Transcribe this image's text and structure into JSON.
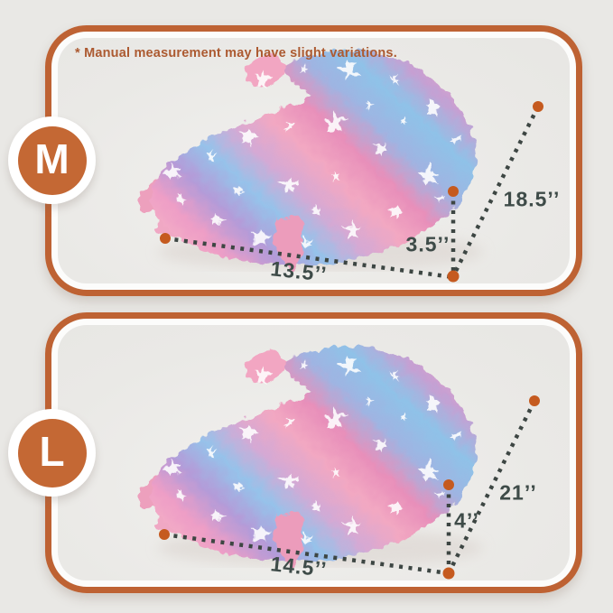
{
  "note": {
    "text": "* Manual measurement may have slight variations."
  },
  "colors": {
    "page_bg": "#e9e8e5",
    "panel_bg": "#ebeae8",
    "accent_orange": "#be6233",
    "badge_orange": "#c46834",
    "note_text": "#ac5a31",
    "measure_text": "#3e4b48",
    "dash": "#3d4643",
    "dot_orange": "#c55a1f",
    "ring_white": "#fcfcfb"
  },
  "panels": [
    {
      "badge": "M",
      "measurements": {
        "width": "13.5’’",
        "depth": "3.5’’",
        "diagonal": "18.5’’"
      }
    },
    {
      "badge": "L",
      "measurements": {
        "width": "14.5’’",
        "depth": "4’’",
        "diagonal": "21’’"
      }
    }
  ]
}
